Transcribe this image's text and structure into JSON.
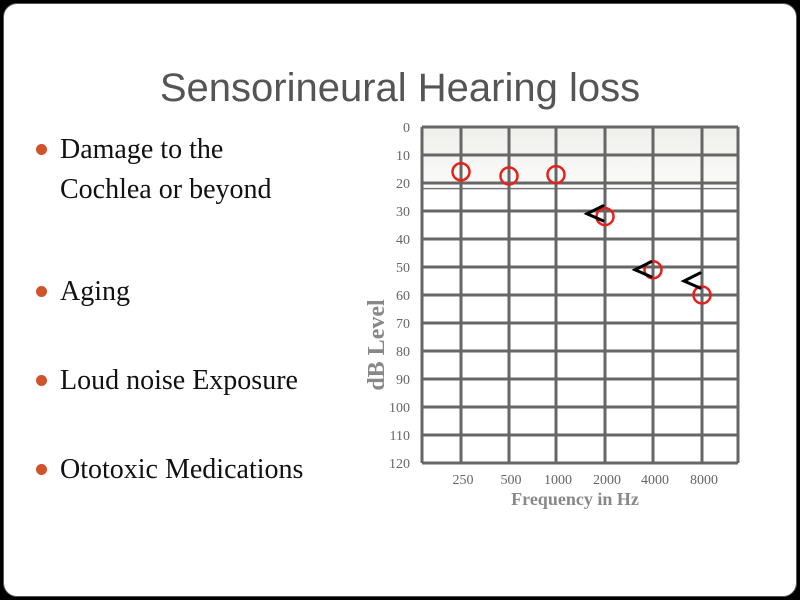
{
  "slide": {
    "title": "Sensorineural Hearing loss",
    "bullets": [
      {
        "lines": [
          "Damage to the",
          "Cochlea or beyond"
        ]
      },
      {
        "lines": [
          "Aging"
        ]
      },
      {
        "lines": [
          "Loud noise Exposure"
        ]
      },
      {
        "lines": [
          "Ototoxic Medications"
        ]
      }
    ],
    "bullet_color": "#d2522a"
  },
  "chart_data": {
    "type": "scatter",
    "title": "",
    "xlabel": "Frequency in Hz",
    "ylabel": "dB Level",
    "categories": [
      "250",
      "500",
      "1000",
      "2000",
      "4000",
      "8000"
    ],
    "yticks": [
      0,
      10,
      20,
      30,
      40,
      50,
      60,
      70,
      80,
      90,
      100,
      110,
      120
    ],
    "ylim": [
      0,
      120
    ],
    "y_inverted": true,
    "grid": true,
    "normal_range_shaded": [
      0,
      20
    ],
    "series": [
      {
        "marker": "circle",
        "color": "#e8201c",
        "values": [
          16,
          17.5,
          17,
          32,
          51,
          60
        ]
      },
      {
        "marker": "less-than",
        "color": "#000000",
        "values": [
          null,
          null,
          null,
          31,
          51,
          55
        ]
      }
    ]
  }
}
